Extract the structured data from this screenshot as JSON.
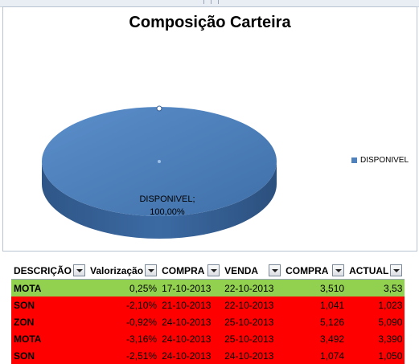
{
  "chart": {
    "title": "Composição Carteira",
    "legend_label": "DISPONIVEL",
    "slice_label": "DISPONIVEL;",
    "slice_percent": "100,00%",
    "color": "#4f81bd"
  },
  "chart_data": {
    "type": "pie",
    "title": "Composição Carteira",
    "categories": [
      "DISPONIVEL"
    ],
    "values": [
      100.0
    ],
    "legend": "right"
  },
  "table": {
    "headers": [
      "DESCRIÇÃO",
      "Valorização",
      "COMPRA",
      "VENDA",
      "COMPRA",
      "ACTUAL"
    ],
    "rows": [
      {
        "status": "green",
        "cells": [
          "MOTA",
          "0,25%",
          "17-10-2013",
          "22-10-2013",
          "3,510",
          "3,53"
        ]
      },
      {
        "status": "red",
        "cells": [
          "SON",
          "-2,10%",
          "21-10-2013",
          "22-10-2013",
          "1,041",
          "1,023"
        ]
      },
      {
        "status": "red",
        "cells": [
          "ZON",
          "-0,92%",
          "24-10-2013",
          "25-10-2013",
          "5,126",
          "5,090"
        ]
      },
      {
        "status": "red",
        "cells": [
          "MOTA",
          "-3,16%",
          "24-10-2013",
          "25-10-2013",
          "3,492",
          "3,390"
        ]
      },
      {
        "status": "red",
        "cells": [
          "SON",
          "-2,51%",
          "24-10-2013",
          "24-10-2013",
          "1,074",
          "1,050"
        ]
      }
    ]
  }
}
